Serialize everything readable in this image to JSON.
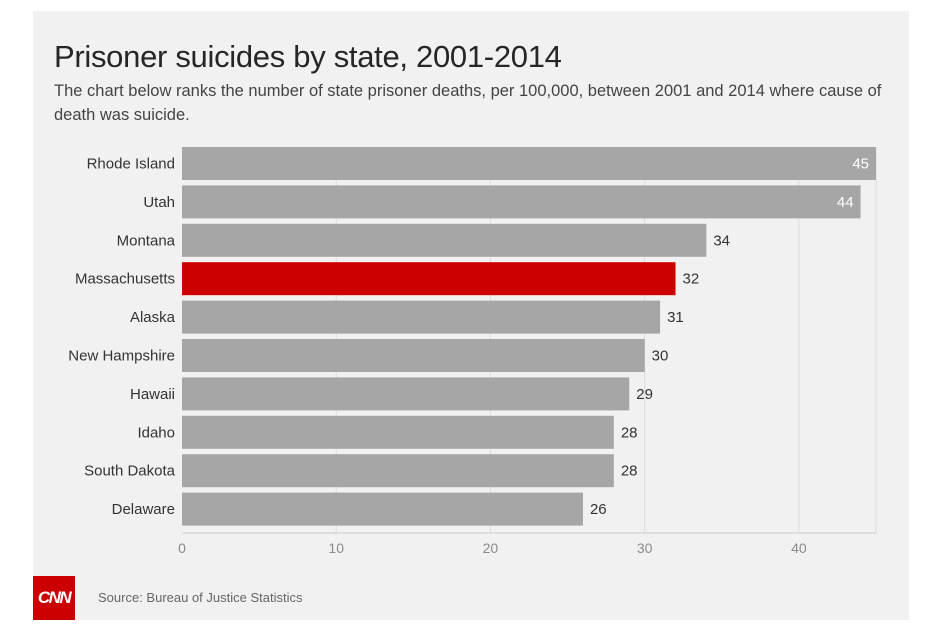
{
  "title": "Prisoner suicides by state, 2001-2014",
  "subtitle": "The chart below ranks the number of state prisoner deaths, per 100,000, between 2001 and 2014 where cause of death was suicide.",
  "source": "Source: Bureau of Justice Statistics",
  "logo_text": "CNN",
  "colors": {
    "bar": "#a6a6a6",
    "highlight": "#cc0000",
    "background": "#f1f1f1",
    "logo": "#cc0000"
  },
  "chart_data": {
    "type": "bar",
    "orientation": "horizontal",
    "categories": [
      "Rhode Island",
      "Utah",
      "Montana",
      "Massachusetts",
      "Alaska",
      "New Hampshire",
      "Hawaii",
      "Idaho",
      "South Dakota",
      "Delaware"
    ],
    "values": [
      45,
      44,
      34,
      32,
      31,
      30,
      29,
      28,
      28,
      26
    ],
    "highlight": "Massachusetts",
    "xlim": [
      0,
      45
    ],
    "xticks": [
      0,
      10,
      20,
      30,
      40
    ],
    "grid": true,
    "legend": "none"
  }
}
